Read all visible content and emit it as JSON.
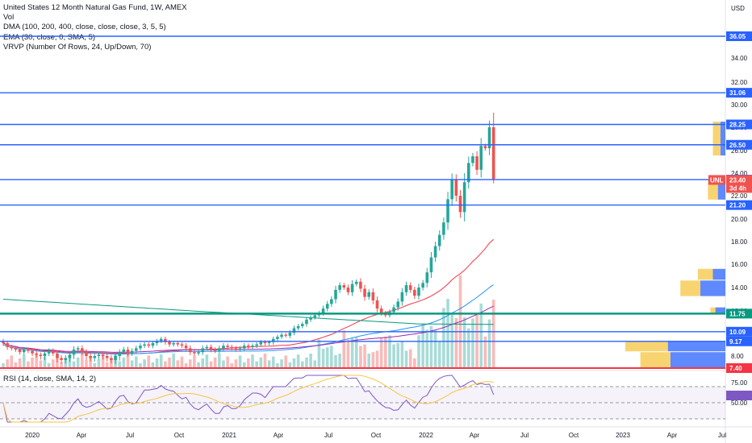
{
  "legend": {
    "title": "United States 12 Month Natural Gas Fund, 1W, AMEX",
    "vol": "Vol",
    "dma": "DMA (100, 200, 400, close, close, close, 3, 5, 5)",
    "ema": "EMA (30, close, 0, SMA, 5)",
    "vrvp": "VRVP (Number Of Rows, 24, Up/Down, 70)",
    "rsi": "RSI (14, close, SMA, 14, 2)"
  },
  "colors": {
    "up": "#26a69a",
    "down": "#ef5350",
    "hline": "#2962ff",
    "green_line": "#089981",
    "red_line": "#f23645",
    "rsi": "#7e57c2",
    "rsi_ma": "#f5c542",
    "ema": "#f23645",
    "dma1": "#2196f3",
    "dma2": "#9c27b0",
    "dma3": "#089981"
  },
  "chart_data": {
    "type": "candlestick",
    "title": "United States 12 Month Natural Gas Fund, 1W, AMEX",
    "currency": "USD",
    "ylim": [
      7.4,
      38.5
    ],
    "yticks": [
      8.0,
      9.0,
      10.0,
      12.0,
      14.0,
      16.0,
      18.0,
      20.0,
      22.0,
      24.0,
      26.0,
      28.0,
      30.0,
      32.0,
      34.0
    ],
    "xticks": [
      "2020",
      "Apr",
      "Jul",
      "Oct",
      "2021",
      "Apr",
      "Jul",
      "Oct",
      "2022",
      "Apr",
      "Jul",
      "Oct",
      "2023",
      "Apr",
      "Jul"
    ],
    "horizontal_levels": [
      {
        "value": 36.05,
        "label": "36.05",
        "color": "#2962ff"
      },
      {
        "value": 31.06,
        "label": "31.06",
        "color": "#2962ff"
      },
      {
        "value": 28.25,
        "label": "28.25",
        "color": "#2962ff"
      },
      {
        "value": 26.5,
        "label": "26.50",
        "color": "#2962ff"
      },
      {
        "value": 23.43,
        "label": "23.43",
        "color": "#2962ff"
      },
      {
        "value": 21.2,
        "label": "21.20",
        "color": "#2962ff"
      },
      {
        "value": 11.75,
        "label": "11.75",
        "color": "#089981"
      },
      {
        "value": 10.09,
        "label": "10.09",
        "color": "#2962ff"
      },
      {
        "value": 9.17,
        "label": "9.17",
        "color": "#2962ff"
      },
      {
        "value": 7.4,
        "label": "7.40",
        "color": "#f23645"
      }
    ],
    "last_price": {
      "symbol": "UNL",
      "value": 23.4,
      "label": "23.40",
      "countdown": "3d 4h"
    },
    "close_series": {
      "start": "2019-11",
      "step": "1W",
      "values": [
        9.0,
        8.7,
        8.6,
        8.5,
        8.3,
        8.5,
        8.4,
        8.2,
        8.1,
        8.0,
        8.2,
        8.4,
        8.2,
        7.9,
        7.8,
        7.9,
        8.1,
        8.5,
        8.6,
        8.3,
        8.0,
        7.9,
        8.0,
        8.1,
        8.0,
        7.9,
        7.8,
        8.0,
        8.3,
        8.5,
        8.2,
        8.4,
        8.6,
        8.8,
        8.9,
        8.8,
        9.0,
        9.2,
        9.4,
        9.1,
        8.9,
        9.0,
        8.9,
        8.8,
        8.6,
        8.3,
        8.2,
        8.3,
        8.6,
        8.7,
        8.5,
        8.4,
        8.6,
        8.8,
        8.7,
        8.6,
        8.5,
        8.6,
        8.8,
        8.7,
        8.8,
        8.9,
        9.1,
        9.0,
        9.1,
        9.4,
        9.6,
        9.8,
        9.7,
        10.0,
        10.4,
        10.6,
        10.8,
        11.2,
        11.4,
        11.6,
        11.8,
        12.2,
        12.6,
        13.0,
        13.8,
        14.2,
        14.0,
        13.6,
        14.3,
        14.5,
        13.9,
        13.2,
        13.6,
        12.9,
        12.2,
        11.8,
        11.6,
        11.9,
        12.3,
        12.8,
        13.6,
        14.2,
        13.8,
        13.3,
        14.0,
        14.4,
        15.3,
        16.6,
        17.6,
        18.6,
        19.7,
        21.7,
        23.4,
        22.0,
        20.6,
        23.2,
        24.9,
        25.5,
        24.3,
        26.4,
        26.2,
        28.0,
        23.4
      ],
      "final_bar": {
        "open": 28.0,
        "high": 29.3,
        "low": 23.1,
        "close": 23.4
      }
    },
    "volume_profile_ranges": [
      {
        "low": 7.4,
        "high": 8.3,
        "up": 12,
        "down": 22
      },
      {
        "low": 8.3,
        "high": 9.2,
        "up": 17,
        "down": 23
      },
      {
        "low": 13.2,
        "high": 14.6,
        "up": 8,
        "down": 10
      },
      {
        "low": 14.6,
        "high": 15.6,
        "up": 6,
        "down": 5
      },
      {
        "low": 11.6,
        "high": 12.3,
        "up": 2,
        "down": 4
      },
      {
        "low": 25.5,
        "high": 28.5,
        "up": 3,
        "down": 2
      },
      {
        "low": 21.6,
        "high": 23.4,
        "up": 4,
        "down": 3
      }
    ],
    "rsi": {
      "name": "RSI",
      "length": 14,
      "ylim": [
        25,
        85
      ],
      "levels": [
        70,
        50,
        30
      ],
      "tick_labels": [
        "75.00",
        "50.00"
      ],
      "tick_values": [
        75,
        50
      ],
      "last": 59
    }
  },
  "axis": {
    "currency_label": "USD"
  }
}
